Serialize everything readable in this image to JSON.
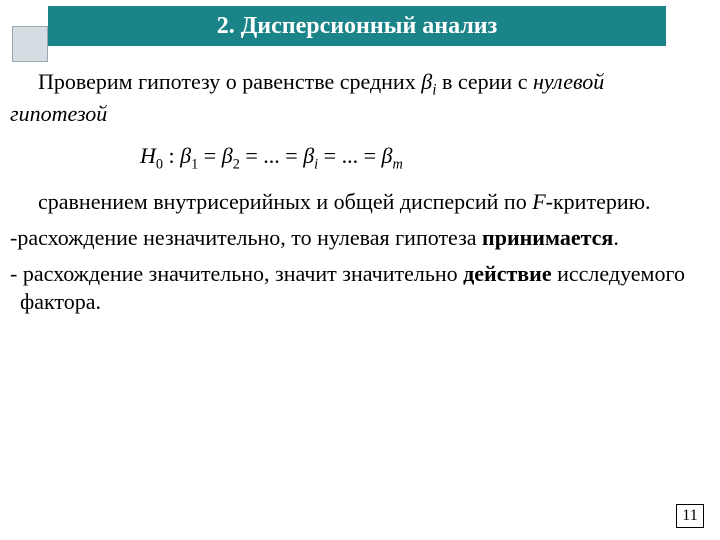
{
  "colors": {
    "header_bg": "#1b8488",
    "square_fill": "#d6dde2",
    "square_border": "#9aa6ae"
  },
  "header": {
    "title": "2. Дисперсионный анализ"
  },
  "body": {
    "p1_a": "Проверим гипотезу о равенстве средних ",
    "p1_beta": "β",
    "p1_sub": "i",
    "p1_b": " в серии с ",
    "p1_c": "нулевой гипотезой",
    "eq_H": "H",
    "eq_0": "0",
    "eq_colon": " :    ",
    "eq_b": "β",
    "eq_s1": "1",
    "eq_s2": "2",
    "eq_si": "i",
    "eq_sm": "m",
    "eq_eq": " = ",
    "eq_dots": "...",
    "p2_a": "сравнением внутрисерийных и общей  дисперсий по ",
    "p2_F": "F",
    "p2_b": "-критерию.",
    "p3_a": "-расхождение незначительно, то нулевая гипотеза ",
    "p3_b": "принимается",
    "p3_c": ".",
    "p4_a": "- расхождение значительно, значит значительно ",
    "p4_b": "действие",
    "p4_c": " исследуемого фактора."
  },
  "page_number": "11"
}
